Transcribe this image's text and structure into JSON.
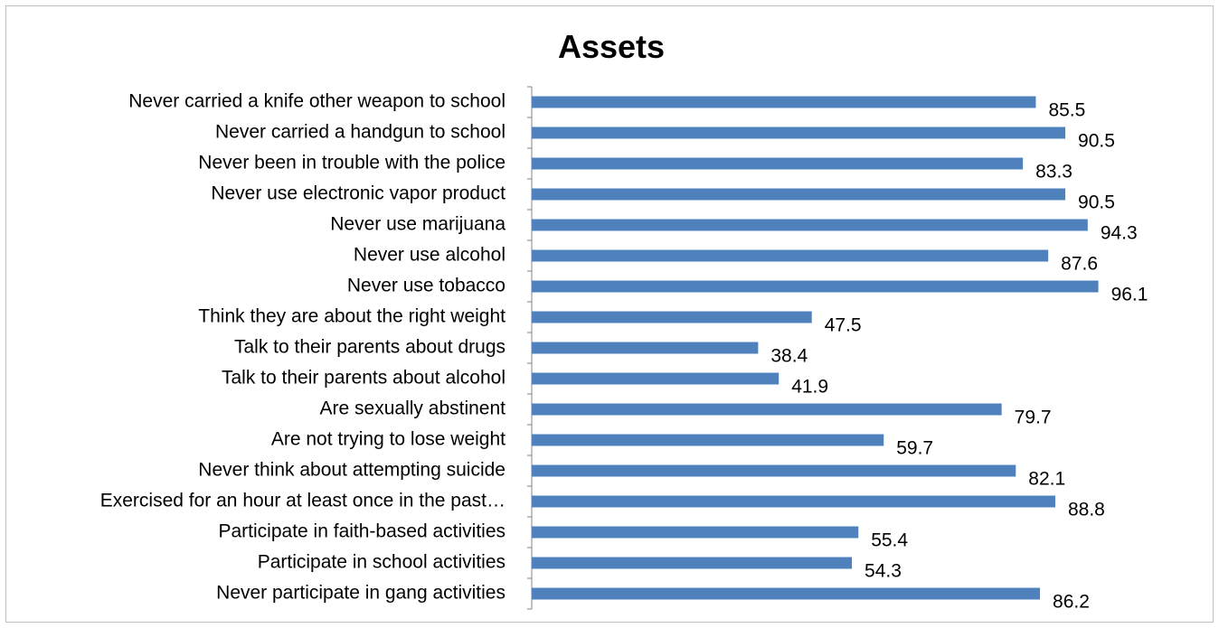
{
  "chart_data": {
    "type": "bar",
    "orientation": "horizontal",
    "title": "Assets",
    "xlabel": "",
    "ylabel": "",
    "xlim": [
      0,
      100
    ],
    "grid": false,
    "legend": "none",
    "bar_color": "#4f81bd",
    "categories": [
      "Never carried a knife other weapon to school",
      "Never carried a handgun to school",
      "Never been in trouble with the police",
      "Never use electronic vapor product",
      "Never use marijuana",
      "Never use alcohol",
      "Never use tobacco",
      "Think they are about the right weight",
      "Talk to their parents about drugs",
      "Talk to their parents about alcohol",
      "Are sexually abstinent",
      "Are not trying to lose weight",
      "Never think about attempting suicide",
      "Exercised for an hour at least once in the past…",
      "Participate in faith-based activities",
      "Participate in school activities",
      "Never participate in gang activities"
    ],
    "values": [
      85.5,
      90.5,
      83.3,
      90.5,
      94.3,
      87.6,
      96.1,
      47.5,
      38.4,
      41.9,
      79.7,
      59.7,
      82.1,
      88.8,
      55.4,
      54.3,
      86.2
    ]
  }
}
